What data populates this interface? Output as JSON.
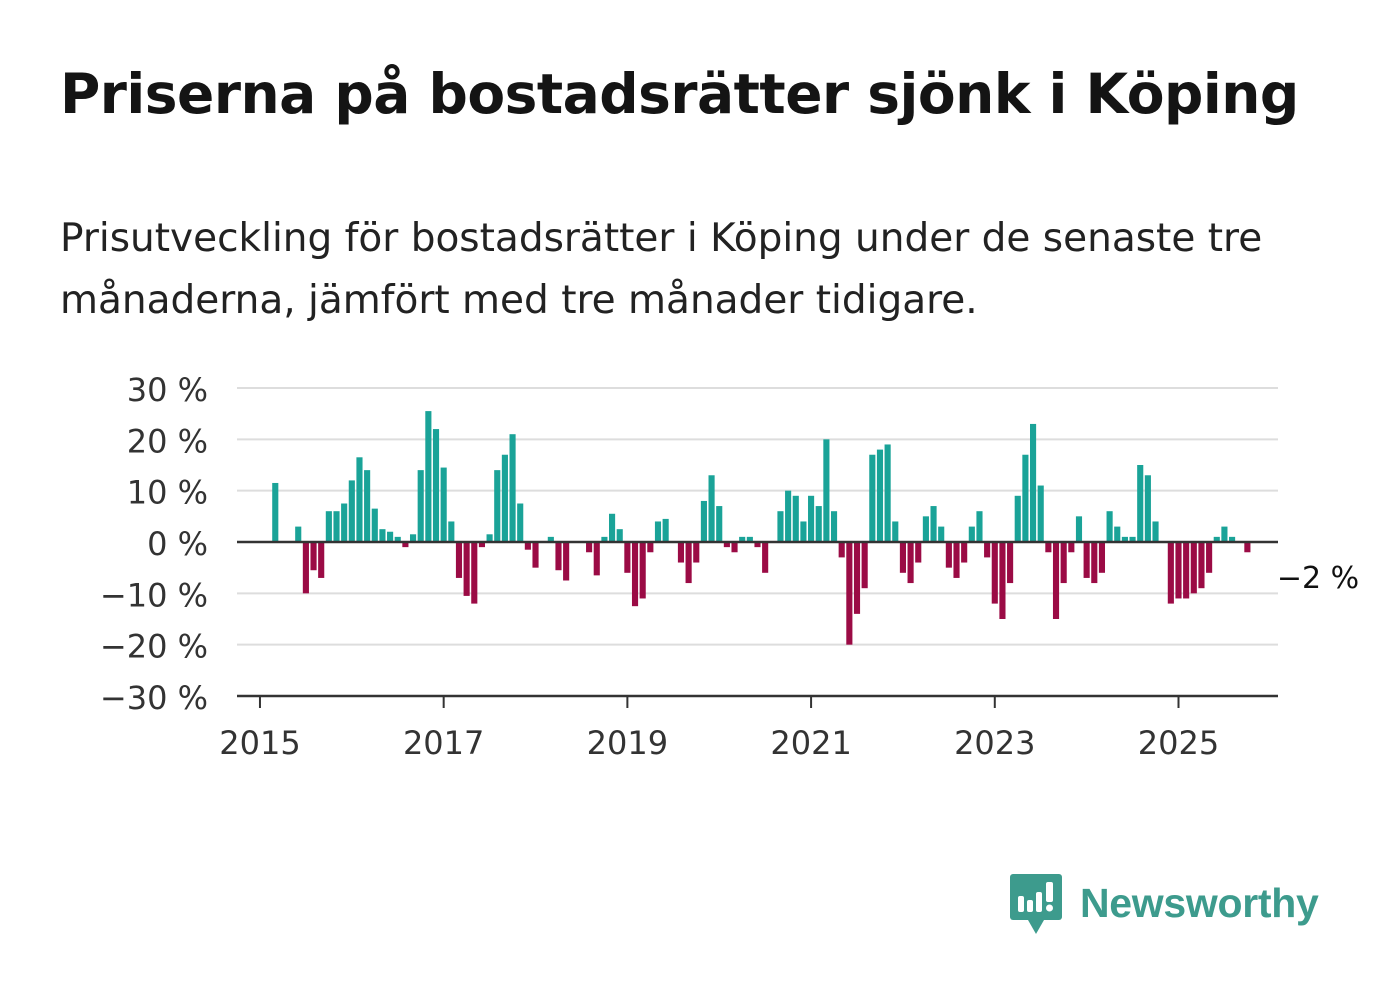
{
  "title": "Priserna på bostadsrätter sjönk i Köping",
  "subtitle": "Prisutveckling för bostadsrätter i Köping under de senaste tre månaderna, jämfört med tre månader tidigare.",
  "brand": {
    "name": "Newsworthy"
  },
  "colors": {
    "positive": "#1aa398",
    "negative": "#9b0b45",
    "grid": "#dddddd",
    "axis": "#333333",
    "brand": "#3d9b8d"
  },
  "chart_data": {
    "type": "bar",
    "x_start": "2015-01",
    "x_frequency": "monthly",
    "xlim": [
      "2014-10",
      "2026-02"
    ],
    "ylim": [
      -30,
      30
    ],
    "y_ticks": [
      30,
      20,
      10,
      0,
      -10,
      -20,
      -30
    ],
    "y_tick_labels": [
      "30 %",
      "20 %",
      "10 %",
      "0 %",
      "−10 %",
      "−20 %",
      "−30 %"
    ],
    "x_ticks": [
      "2015",
      "2017",
      "2019",
      "2021",
      "2023",
      "2025"
    ],
    "grid": true,
    "xlabel": "",
    "ylabel": "",
    "values": [
      null,
      null,
      11.5,
      null,
      null,
      3,
      -10,
      -5.5,
      -7,
      6,
      6,
      7.5,
      12,
      16.5,
      14,
      6.5,
      2.5,
      2,
      1,
      -1,
      1.5,
      14,
      25.5,
      22,
      14.5,
      4,
      -7,
      -10.5,
      -12,
      -1,
      1.5,
      14,
      17,
      21,
      7.5,
      -1.5,
      -5,
      null,
      1,
      -5.5,
      -7.5,
      null,
      null,
      -2,
      -6.5,
      1,
      5.5,
      2.5,
      -6,
      -12.5,
      -11,
      -2,
      4,
      4.5,
      null,
      -4,
      -8,
      -4,
      8,
      13,
      7,
      -1,
      -2,
      1,
      1,
      -1,
      -6,
      null,
      6,
      10,
      9,
      4,
      9,
      7,
      20,
      6,
      -3,
      -20,
      -14,
      -9,
      17,
      18,
      19,
      4,
      -6,
      -8,
      -4,
      5,
      7,
      3,
      -5,
      -7,
      -4,
      3,
      6,
      -3,
      -12,
      -15,
      -8,
      9,
      17,
      23,
      11,
      -2,
      -15,
      -8,
      -2,
      5,
      -7,
      -8,
      -6,
      6,
      3,
      1,
      1,
      15,
      13,
      4,
      null,
      -12,
      -11,
      -11,
      -10,
      -9,
      -6,
      1,
      3,
      1,
      null,
      -2
    ],
    "annotation": {
      "text": "−2 %",
      "series_index": 133
    }
  }
}
